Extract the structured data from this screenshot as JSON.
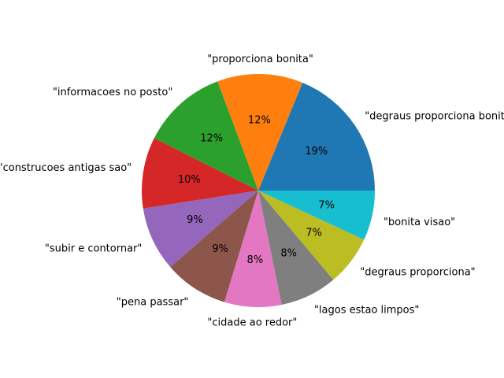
{
  "chart_data": {
    "type": "pie",
    "title": "",
    "start_angle_deg": 0,
    "direction": "counterclockwise",
    "slices": [
      {
        "label": "\"degraus proporciona bonita\"",
        "value": 19,
        "pct_label": "19%",
        "color": "#1f77b4"
      },
      {
        "label": "\"proporciona bonita\"",
        "value": 12,
        "pct_label": "12%",
        "color": "#ff7f0e"
      },
      {
        "label": "\"informacoes no posto\"",
        "value": 12,
        "pct_label": "12%",
        "color": "#2ca02c"
      },
      {
        "label": "\"construcoes antigas sao\"",
        "value": 10,
        "pct_label": "10%",
        "color": "#d62728"
      },
      {
        "label": "\"subir e contornar\"",
        "value": 9,
        "pct_label": "9%",
        "color": "#9467bd"
      },
      {
        "label": "\"pena passar\"",
        "value": 9,
        "pct_label": "9%",
        "color": "#8c564b"
      },
      {
        "label": "\"cidade ao redor\"",
        "value": 8,
        "pct_label": "8%",
        "color": "#e377c2"
      },
      {
        "label": "\"lagos estao limpos\"",
        "value": 8,
        "pct_label": "8%",
        "color": "#7f7f7f"
      },
      {
        "label": "\"degraus proporciona\"",
        "value": 7,
        "pct_label": "7%",
        "color": "#bcbd22"
      },
      {
        "label": "\"bonita visao\"",
        "value": 7,
        "pct_label": "7%",
        "color": "#17becf"
      }
    ]
  }
}
